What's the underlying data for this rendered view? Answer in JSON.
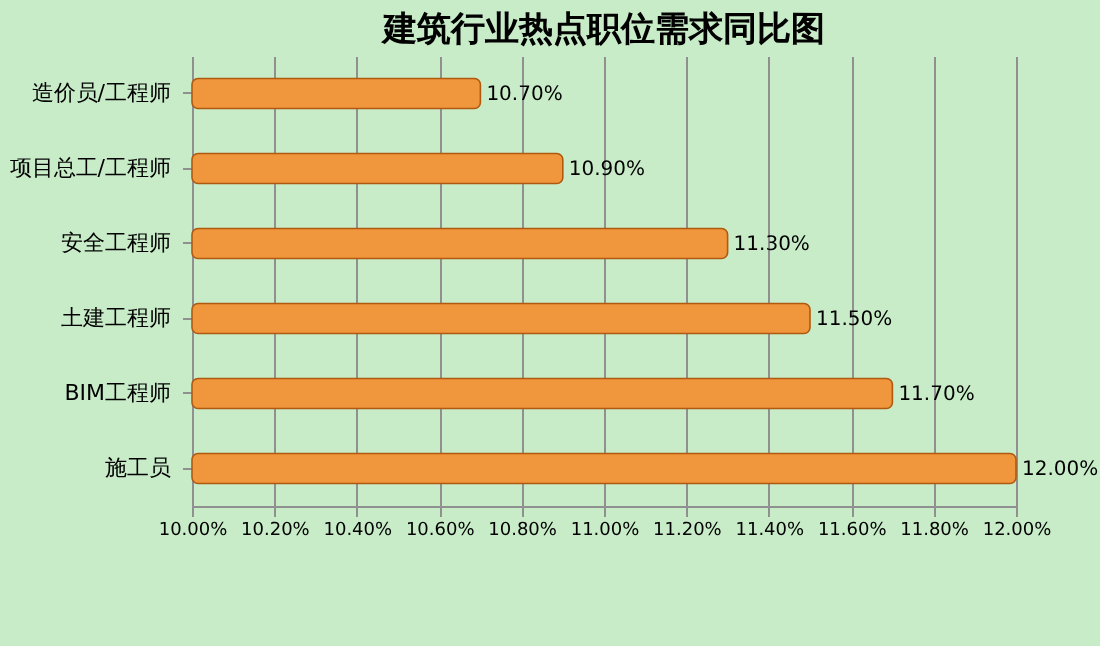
{
  "chart_data": {
    "type": "bar",
    "orientation": "horizontal",
    "title": "建筑行业热点职位需求同比图",
    "categories": [
      "造价员/工程师",
      "项目总工/工程师",
      "安全工程师",
      "土建工程师",
      "BIM工程师",
      "施工员"
    ],
    "values": [
      10.7,
      10.9,
      11.3,
      11.5,
      11.7,
      12.0
    ],
    "value_labels": [
      "10.70%",
      "10.90%",
      "11.30%",
      "11.50%",
      "11.70%",
      "12.00%"
    ],
    "color": "#f0963c",
    "xlim": [
      10,
      12
    ],
    "xticks": [
      {
        "value": 10,
        "label": "10.00%"
      },
      {
        "value": 10.2,
        "label": "10.20%"
      },
      {
        "value": 10.4,
        "label": "10.40%"
      },
      {
        "value": 10.6,
        "label": "10.60%"
      },
      {
        "value": 10.8,
        "label": "10.80%"
      },
      {
        "value": 11,
        "label": "11.00%"
      },
      {
        "value": 11.2,
        "label": "11.20%"
      },
      {
        "value": 11.4,
        "label": "11.40%"
      },
      {
        "value": 11.6,
        "label": "11.60%"
      },
      {
        "value": 11.8,
        "label": "11.80%"
      },
      {
        "value": 12,
        "label": "12.00%"
      }
    ],
    "grid": "x"
  }
}
